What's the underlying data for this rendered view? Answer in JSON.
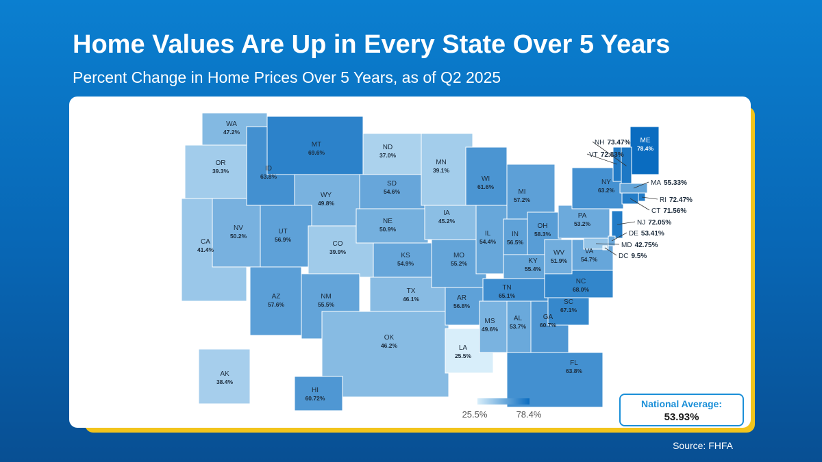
{
  "header": {
    "title": "Home Values Are Up in Every State Over 5 Years",
    "subtitle": "Percent Change in Home Prices Over 5 Years, as of Q2 2025"
  },
  "map": {
    "states": [
      {
        "abbr": "WA",
        "value": 47.2,
        "value_label": "47.2%"
      },
      {
        "abbr": "OR",
        "value": 39.3,
        "value_label": "39.3%"
      },
      {
        "abbr": "CA",
        "value": 41.4,
        "value_label": "41.4%"
      },
      {
        "abbr": "NV",
        "value": 50.2,
        "value_label": "50.2%"
      },
      {
        "abbr": "ID",
        "value": 63.8,
        "value_label": "63.8%"
      },
      {
        "abbr": "MT",
        "value": 69.6,
        "value_label": "69.6%"
      },
      {
        "abbr": "WY",
        "value": 49.8,
        "value_label": "49.8%"
      },
      {
        "abbr": "UT",
        "value": 56.9,
        "value_label": "56.9%"
      },
      {
        "abbr": "AZ",
        "value": 57.6,
        "value_label": "57.6%"
      },
      {
        "abbr": "CO",
        "value": 39.9,
        "value_label": "39.9%"
      },
      {
        "abbr": "NM",
        "value": 55.5,
        "value_label": "55.5%"
      },
      {
        "abbr": "ND",
        "value": 37.0,
        "value_label": "37.0%"
      },
      {
        "abbr": "SD",
        "value": 54.6,
        "value_label": "54.6%"
      },
      {
        "abbr": "NE",
        "value": 50.9,
        "value_label": "50.9%"
      },
      {
        "abbr": "KS",
        "value": 54.9,
        "value_label": "54.9%"
      },
      {
        "abbr": "OK",
        "value": 46.2,
        "value_label": "46.2%"
      },
      {
        "abbr": "TX",
        "value": 46.1,
        "value_label": "46.1%"
      },
      {
        "abbr": "MN",
        "value": 39.1,
        "value_label": "39.1%"
      },
      {
        "abbr": "IA",
        "value": 45.2,
        "value_label": "45.2%"
      },
      {
        "abbr": "MO",
        "value": 55.2,
        "value_label": "55.2%"
      },
      {
        "abbr": "AR",
        "value": 56.8,
        "value_label": "56.8%"
      },
      {
        "abbr": "LA",
        "value": 25.5,
        "value_label": "25.5%"
      },
      {
        "abbr": "WI",
        "value": 61.6,
        "value_label": "61.6%"
      },
      {
        "abbr": "IL",
        "value": 54.4,
        "value_label": "54.4%"
      },
      {
        "abbr": "MI",
        "value": 57.2,
        "value_label": "57.2%"
      },
      {
        "abbr": "IN",
        "value": 56.5,
        "value_label": "56.5%"
      },
      {
        "abbr": "OH",
        "value": 58.3,
        "value_label": "58.3%"
      },
      {
        "abbr": "KY",
        "value": 55.4,
        "value_label": "55.4%"
      },
      {
        "abbr": "TN",
        "value": 65.1,
        "value_label": "65.1%"
      },
      {
        "abbr": "MS",
        "value": 49.6,
        "value_label": "49.6%"
      },
      {
        "abbr": "AL",
        "value": 53.7,
        "value_label": "53.7%"
      },
      {
        "abbr": "GA",
        "value": 60.7,
        "value_label": "60.7%"
      },
      {
        "abbr": "FL",
        "value": 63.8,
        "value_label": "63.8%"
      },
      {
        "abbr": "SC",
        "value": 67.1,
        "value_label": "67.1%"
      },
      {
        "abbr": "NC",
        "value": 68.0,
        "value_label": "68.0%"
      },
      {
        "abbr": "VA",
        "value": 54.7,
        "value_label": "54.7%"
      },
      {
        "abbr": "WV",
        "value": 51.9,
        "value_label": "51.9%"
      },
      {
        "abbr": "PA",
        "value": 53.2,
        "value_label": "53.2%"
      },
      {
        "abbr": "NY",
        "value": 63.2,
        "value_label": "63.2%"
      },
      {
        "abbr": "NJ",
        "value": 72.05,
        "value_label": "72.05%"
      },
      {
        "abbr": "DE",
        "value": 53.41,
        "value_label": "53.41%"
      },
      {
        "abbr": "MD",
        "value": 42.75,
        "value_label": "42.75%"
      },
      {
        "abbr": "DC",
        "value": 9.5,
        "value_label": "9.5%"
      },
      {
        "abbr": "ME",
        "value": 78.4,
        "value_label": "78.4%"
      },
      {
        "abbr": "NH",
        "value": 73.47,
        "value_label": "73.47%"
      },
      {
        "abbr": "VT",
        "value": 72.83,
        "value_label": "72.83%"
      },
      {
        "abbr": "MA",
        "value": 55.33,
        "value_label": "55.33%"
      },
      {
        "abbr": "RI",
        "value": 72.47,
        "value_label": "72.47%"
      },
      {
        "abbr": "CT",
        "value": 71.56,
        "value_label": "71.56%"
      },
      {
        "abbr": "AK",
        "value": 38.4,
        "value_label": "38.4%"
      },
      {
        "abbr": "HI",
        "value": 60.72,
        "value_label": "60.72%"
      }
    ],
    "legend": {
      "min": 25.5,
      "min_label": "25.5%",
      "max": 78.4,
      "max_label": "78.4%",
      "low_color": "#d8eefa",
      "high_color": "#0a6cc0"
    }
  },
  "national_average": {
    "label": "National Average:",
    "value": "53.93%"
  },
  "footer": {
    "source": "Source: FHFA"
  }
}
